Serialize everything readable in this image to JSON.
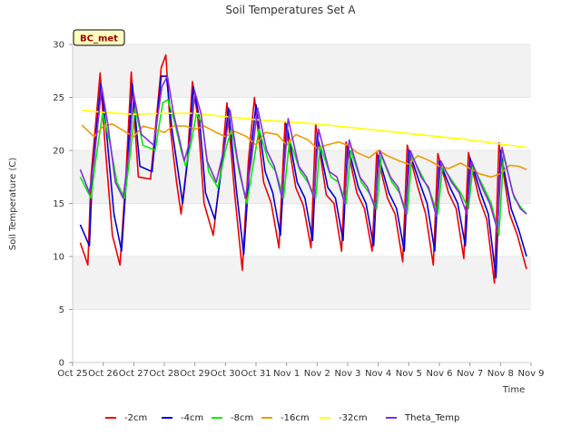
{
  "chart_data": {
    "type": "line",
    "title": "Soil Temperatures Set A",
    "xlabel": "Time",
    "ylabel": "Soil Temperature (C)",
    "badge": "BC_met",
    "ylim": [
      0,
      30
    ],
    "yticks": [
      0,
      5,
      10,
      15,
      20,
      25,
      30
    ],
    "xlim": [
      0,
      15
    ],
    "xtick_labels": [
      "Oct 25",
      "Oct 26",
      "Oct 27",
      "Oct 28",
      "Oct 29",
      "Oct 30",
      "Oct 31",
      "Nov 1",
      "Nov 2",
      "Nov 3",
      "Nov 4",
      "Nov 5",
      "Nov 6",
      "Nov 7",
      "Nov 8",
      "Nov 9"
    ],
    "grid": "horizontal bands",
    "legend_position": "bottom",
    "series": [
      {
        "name": "-2cm",
        "color": "#ee0000",
        "x": [
          0.25,
          0.5,
          0.6,
          0.9,
          1.05,
          1.3,
          1.55,
          1.75,
          1.92,
          2.15,
          2.55,
          2.9,
          3.05,
          3.2,
          3.4,
          3.55,
          3.75,
          3.92,
          4.1,
          4.3,
          4.6,
          4.9,
          5.05,
          5.3,
          5.55,
          5.75,
          5.95,
          6.25,
          6.5,
          6.75,
          6.95,
          7.3,
          7.55,
          7.8,
          7.95,
          8.3,
          8.55,
          8.8,
          8.95,
          9.3,
          9.55,
          9.8,
          9.95,
          10.3,
          10.55,
          10.8,
          10.95,
          11.3,
          11.55,
          11.8,
          11.95,
          12.3,
          12.55,
          12.8,
          12.95,
          13.3,
          13.55,
          13.8,
          13.95,
          14.3,
          14.55,
          14.85
        ],
        "values": [
          11.3,
          9.2,
          17.5,
          27.3,
          21.0,
          12.0,
          9.2,
          18.0,
          27.4,
          17.5,
          17.3,
          27.8,
          29.0,
          22.0,
          17.0,
          14.0,
          19.0,
          26.5,
          23.0,
          15.0,
          12.0,
          19.5,
          24.5,
          16.0,
          8.7,
          19.0,
          25.0,
          17.0,
          15.0,
          10.8,
          22.7,
          16.5,
          14.8,
          10.8,
          22.5,
          15.8,
          15.0,
          10.5,
          20.8,
          16.0,
          14.5,
          10.5,
          19.8,
          15.5,
          14.0,
          9.5,
          20.5,
          16.5,
          14.0,
          9.2,
          19.7,
          16.0,
          14.5,
          9.8,
          19.8,
          15.5,
          13.5,
          7.5,
          20.7,
          14.0,
          12.0,
          8.8
        ]
      },
      {
        "name": "-4cm",
        "color": "#0000dd",
        "x": [
          0.25,
          0.55,
          0.65,
          0.92,
          1.1,
          1.35,
          1.6,
          1.8,
          1.95,
          2.2,
          2.6,
          2.9,
          3.07,
          3.25,
          3.45,
          3.6,
          3.8,
          3.95,
          4.15,
          4.35,
          4.65,
          4.95,
          5.1,
          5.35,
          5.6,
          5.8,
          6.0,
          6.3,
          6.55,
          6.8,
          7.0,
          7.35,
          7.6,
          7.85,
          8.0,
          8.35,
          8.6,
          8.85,
          9.0,
          9.35,
          9.6,
          9.85,
          10.0,
          10.35,
          10.6,
          10.85,
          11.0,
          11.35,
          11.6,
          11.85,
          12.0,
          12.35,
          12.6,
          12.85,
          13.0,
          13.35,
          13.6,
          13.85,
          14.0,
          14.35,
          14.6,
          14.85
        ],
        "values": [
          13.0,
          11.0,
          18.0,
          26.3,
          22.0,
          14.0,
          10.5,
          19.0,
          26.3,
          18.5,
          18.0,
          27.0,
          27.0,
          22.0,
          18.0,
          15.0,
          20.0,
          26.0,
          23.0,
          16.0,
          13.5,
          20.0,
          24.0,
          16.5,
          10.2,
          19.0,
          24.3,
          18.0,
          16.0,
          12.0,
          22.5,
          17.0,
          15.5,
          11.5,
          21.5,
          16.5,
          15.5,
          11.5,
          20.5,
          16.5,
          15.0,
          11.0,
          19.5,
          16.0,
          14.5,
          10.5,
          20.0,
          17.0,
          15.0,
          10.5,
          19.0,
          16.5,
          15.0,
          11.0,
          19.3,
          16.0,
          14.0,
          8.0,
          20.0,
          14.5,
          12.5,
          10.0
        ]
      },
      {
        "name": "-8cm",
        "color": "#00ee00",
        "x": [
          0.25,
          0.6,
          0.75,
          0.98,
          1.2,
          1.45,
          1.7,
          1.9,
          2.05,
          2.3,
          2.7,
          2.95,
          3.12,
          3.35,
          3.55,
          3.7,
          3.9,
          4.05,
          4.25,
          4.45,
          4.75,
          5.0,
          5.2,
          5.45,
          5.7,
          5.9,
          6.1,
          6.4,
          6.65,
          6.9,
          7.1,
          7.45,
          7.7,
          7.95,
          8.1,
          8.45,
          8.7,
          8.95,
          9.1,
          9.45,
          9.7,
          9.95,
          10.1,
          10.45,
          10.7,
          10.95,
          11.1,
          11.45,
          11.7,
          11.95,
          12.1,
          12.45,
          12.7,
          12.95,
          13.1,
          13.45,
          13.7,
          13.95,
          14.1,
          14.45,
          14.7,
          14.85
        ],
        "values": [
          17.5,
          15.5,
          19.0,
          23.5,
          21.0,
          17.0,
          15.5,
          20.0,
          24.0,
          20.5,
          20.0,
          24.5,
          24.8,
          22.5,
          20.0,
          18.5,
          21.0,
          23.5,
          22.5,
          18.0,
          16.5,
          20.0,
          22.0,
          18.0,
          15.0,
          18.5,
          22.0,
          19.0,
          18.0,
          15.5,
          21.0,
          18.0,
          17.0,
          15.5,
          20.5,
          17.5,
          17.0,
          15.0,
          20.0,
          17.0,
          16.0,
          14.5,
          19.5,
          17.0,
          16.0,
          14.0,
          19.5,
          17.5,
          16.0,
          14.0,
          18.5,
          17.0,
          16.0,
          14.5,
          18.5,
          16.5,
          15.0,
          12.0,
          19.5,
          15.5,
          14.5,
          14.0
        ]
      },
      {
        "name": "-16cm",
        "color": "#ee9900",
        "x": [
          0.3,
          0.7,
          1.0,
          1.3,
          1.7,
          2.0,
          2.3,
          2.7,
          3.0,
          3.3,
          3.7,
          4.0,
          4.3,
          4.7,
          5.0,
          5.3,
          5.7,
          6.0,
          6.3,
          6.7,
          7.0,
          7.3,
          7.7,
          8.0,
          8.3,
          8.7,
          9.0,
          9.3,
          9.7,
          10.0,
          10.3,
          10.7,
          11.0,
          11.3,
          11.7,
          12.0,
          12.3,
          12.7,
          13.0,
          13.3,
          13.7,
          14.0,
          14.3,
          14.6,
          14.85
        ],
        "values": [
          22.4,
          21.3,
          22.3,
          22.5,
          21.8,
          21.3,
          22.3,
          22.0,
          21.7,
          22.3,
          22.3,
          22.0,
          22.3,
          21.7,
          21.3,
          21.8,
          21.3,
          20.5,
          21.7,
          21.5,
          20.5,
          21.5,
          21.0,
          20.2,
          20.5,
          20.8,
          20.5,
          19.8,
          19.3,
          20.0,
          19.5,
          19.0,
          18.7,
          19.5,
          19.0,
          18.5,
          18.3,
          18.8,
          18.3,
          17.8,
          17.5,
          17.8,
          18.6,
          18.5,
          18.2
        ]
      },
      {
        "name": "-32cm",
        "color": "#ffff00",
        "x": [
          0.3,
          1.0,
          2.0,
          3.0,
          4.0,
          5.0,
          6.0,
          7.0,
          8.0,
          9.0,
          10.0,
          11.0,
          12.0,
          13.0,
          14.0,
          14.85
        ],
        "values": [
          23.8,
          23.6,
          23.4,
          23.5,
          23.5,
          23.2,
          22.9,
          22.7,
          22.5,
          22.2,
          21.9,
          21.6,
          21.3,
          21.0,
          20.6,
          20.3
        ]
      },
      {
        "name": "Theta_Temp",
        "color": "#8a2be2",
        "x": [
          0.25,
          0.55,
          0.7,
          0.95,
          1.15,
          1.4,
          1.65,
          1.85,
          2.0,
          2.25,
          2.65,
          2.92,
          3.1,
          3.3,
          3.5,
          3.65,
          3.85,
          4.0,
          4.2,
          4.4,
          4.7,
          4.98,
          5.15,
          5.4,
          5.65,
          5.85,
          6.05,
          6.35,
          6.6,
          6.85,
          7.05,
          7.4,
          7.65,
          7.9,
          8.05,
          8.4,
          8.65,
          8.9,
          9.05,
          9.4,
          9.65,
          9.9,
          10.05,
          10.4,
          10.65,
          10.9,
          11.05,
          11.4,
          11.65,
          11.9,
          12.05,
          12.4,
          12.65,
          12.9,
          13.05,
          13.4,
          13.65,
          13.9,
          14.05,
          14.4,
          14.65,
          14.85
        ],
        "values": [
          18.2,
          16.0,
          19.0,
          26.0,
          22.5,
          17.0,
          15.5,
          20.0,
          25.3,
          21.5,
          20.5,
          26.0,
          27.0,
          23.5,
          21.0,
          19.0,
          21.0,
          25.5,
          23.5,
          19.0,
          17.0,
          20.5,
          23.8,
          19.0,
          15.5,
          19.0,
          24.0,
          20.0,
          18.5,
          15.5,
          23.0,
          18.5,
          17.5,
          15.5,
          22.0,
          18.0,
          17.5,
          15.0,
          21.0,
          17.5,
          16.5,
          14.5,
          20.0,
          17.5,
          16.5,
          14.0,
          20.0,
          17.5,
          16.5,
          13.8,
          19.0,
          17.0,
          16.0,
          14.0,
          19.0,
          16.5,
          15.0,
          12.5,
          20.3,
          16.0,
          14.5,
          14.0
        ]
      }
    ]
  }
}
